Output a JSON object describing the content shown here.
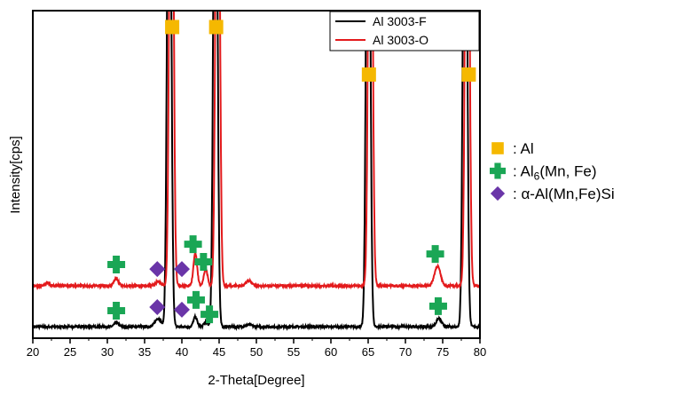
{
  "chart_data": {
    "type": "line",
    "xlabel": "2-Theta[Degree]",
    "ylabel": "Intensity[cps]",
    "xlim": [
      20,
      80
    ],
    "ylim": [
      0,
      100
    ],
    "xticks": [
      20,
      25,
      30,
      35,
      40,
      45,
      50,
      55,
      60,
      65,
      70,
      75,
      80
    ],
    "grid": false,
    "legend_position": "top-right",
    "series": [
      {
        "name": "Al 3003-F",
        "color": "#000000",
        "baseline": 3.5,
        "peaks": [
          {
            "x": 31.2,
            "height": 1.2,
            "width": 0.3
          },
          {
            "x": 36.8,
            "height": 2.5,
            "width": 0.4
          },
          {
            "x": 38.3,
            "height": 200,
            "width": 0.25
          },
          {
            "x": 41.8,
            "height": 3,
            "width": 0.25
          },
          {
            "x": 43.2,
            "height": 1.5,
            "width": 0.25
          },
          {
            "x": 44.5,
            "height": 200,
            "width": 0.25
          },
          {
            "x": 49.0,
            "height": 0.6,
            "width": 0.4
          },
          {
            "x": 65.0,
            "height": 200,
            "width": 0.25
          },
          {
            "x": 74.5,
            "height": 2.5,
            "width": 0.35
          },
          {
            "x": 78.0,
            "height": 200,
            "width": 0.25
          }
        ]
      },
      {
        "name": "Al 3003-O",
        "color": "#e31a1c",
        "baseline": 16,
        "peaks": [
          {
            "x": 22.0,
            "height": 1.0,
            "width": 0.25
          },
          {
            "x": 31.2,
            "height": 2.2,
            "width": 0.3
          },
          {
            "x": 36.8,
            "height": 1.2,
            "width": 0.4
          },
          {
            "x": 38.6,
            "height": 200,
            "width": 0.25
          },
          {
            "x": 41.8,
            "height": 10,
            "width": 0.25
          },
          {
            "x": 43.2,
            "height": 5,
            "width": 0.25
          },
          {
            "x": 44.8,
            "height": 200,
            "width": 0.25
          },
          {
            "x": 49.0,
            "height": 1.5,
            "width": 0.4
          },
          {
            "x": 65.3,
            "height": 200,
            "width": 0.25
          },
          {
            "x": 74.3,
            "height": 6,
            "width": 0.4
          },
          {
            "x": 78.3,
            "height": 200,
            "width": 0.25
          }
        ]
      }
    ],
    "phase_markers": [
      {
        "phase": "Al",
        "shape": "square",
        "color": "#f5b800",
        "points": [
          [
            38.7,
            95
          ],
          [
            44.6,
            95
          ],
          [
            65.1,
            80.5
          ],
          [
            78.5,
            80.5
          ]
        ]
      },
      {
        "phase": "Al6(Mn, Fe)",
        "shape": "cross",
        "color": "#1aa655",
        "points": [
          [
            31.2,
            22.5
          ],
          [
            31.2,
            8.4
          ],
          [
            41.5,
            28.7
          ],
          [
            42.9,
            23.3
          ],
          [
            41.9,
            11.7
          ],
          [
            43.7,
            7.3
          ],
          [
            74.0,
            25.7
          ],
          [
            74.4,
            9.8
          ]
        ]
      },
      {
        "phase": "α-Al(Mn,Fe)Si",
        "shape": "diamond",
        "color": "#6a35a8",
        "points": [
          [
            36.7,
            21.1
          ],
          [
            40.0,
            21.1
          ],
          [
            36.7,
            9.5
          ],
          [
            40.0,
            8.7
          ]
        ]
      }
    ],
    "phase_legend": [
      {
        "label_prefix": ": Al",
        "label_sub": "",
        "label_suffix": ""
      },
      {
        "label_prefix": ": Al",
        "label_sub": "6",
        "label_suffix": "(Mn, Fe)"
      },
      {
        "label_prefix": ": α-Al(Mn,Fe)Si",
        "label_sub": "",
        "label_suffix": ""
      }
    ]
  }
}
